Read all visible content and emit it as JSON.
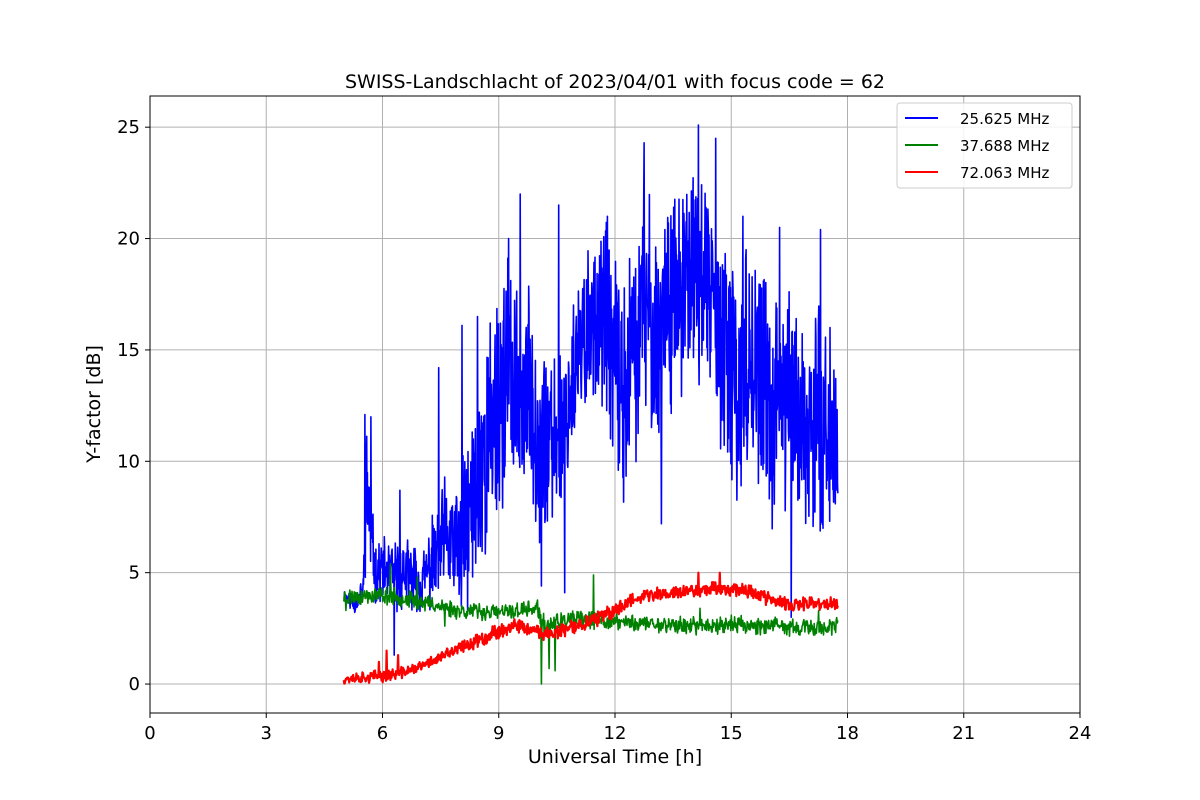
{
  "chart_data": {
    "type": "line",
    "title": "SWISS-Landschlacht of 2023/04/01 with focus code = 62",
    "xlabel": "Universal Time [h]",
    "ylabel": "Y-factor [dB]",
    "xlim": [
      0,
      24
    ],
    "ylim": [
      -1.3,
      26.4
    ],
    "xticks": [
      0,
      3,
      6,
      9,
      12,
      15,
      18,
      21,
      24
    ],
    "yticks": [
      0,
      5,
      10,
      15,
      20,
      25
    ],
    "grid": true,
    "legend_position": "top-right",
    "series": [
      {
        "name": "25.625 MHz",
        "color": "#0000ff",
        "x": [
          5.0,
          5.3,
          5.5,
          5.6,
          5.8,
          6.0,
          6.3,
          6.6,
          7.0,
          7.3,
          7.6,
          8.0,
          8.3,
          8.6,
          8.9,
          9.2,
          9.5,
          9.8,
          10.1,
          10.4,
          10.7,
          11.0,
          11.3,
          11.6,
          11.9,
          12.2,
          12.5,
          12.8,
          13.1,
          13.4,
          13.7,
          14.0,
          14.3,
          14.6,
          14.9,
          15.2,
          15.5,
          15.8,
          16.1,
          16.4,
          16.7,
          17.0,
          17.3,
          17.6,
          17.75
        ],
        "y": [
          4.0,
          3.6,
          4.2,
          9.0,
          5.0,
          5.2,
          4.8,
          5.0,
          4.5,
          5.5,
          6.5,
          6.0,
          8.0,
          10.0,
          12.0,
          14.0,
          12.5,
          13.0,
          11.0,
          10.5,
          12.0,
          14.0,
          16.0,
          17.0,
          15.0,
          13.0,
          15.0,
          17.0,
          15.0,
          18.0,
          17.0,
          19.0,
          18.0,
          17.0,
          14.0,
          13.0,
          15.0,
          13.0,
          12.0,
          13.0,
          12.0,
          11.0,
          12.0,
          11.0,
          10.5
        ],
        "amp": [
          0.2,
          0.4,
          0.5,
          2.5,
          1.0,
          1.0,
          1.2,
          1.2,
          1.0,
          1.5,
          2.0,
          2.5,
          3.5,
          4.0,
          4.0,
          4.0,
          3.5,
          3.5,
          3.5,
          3.0,
          3.0,
          3.0,
          3.0,
          3.0,
          3.5,
          3.5,
          4.0,
          4.0,
          4.0,
          4.0,
          3.5,
          3.5,
          3.5,
          3.5,
          4.0,
          4.0,
          4.0,
          4.0,
          4.0,
          4.0,
          4.0,
          4.0,
          3.5,
          3.5,
          3.0
        ],
        "spikes": [
          [
            5.55,
            12.1
          ],
          [
            5.7,
            12.0
          ],
          [
            6.45,
            8.7
          ],
          [
            6.3,
            1.3
          ],
          [
            7.45,
            14.2
          ],
          [
            8.05,
            16.1
          ],
          [
            8.45,
            16.5
          ],
          [
            9.25,
            20.0
          ],
          [
            9.55,
            22.0
          ],
          [
            10.1,
            4.4
          ],
          [
            10.55,
            21.5
          ],
          [
            10.7,
            4.1
          ],
          [
            11.8,
            21.0
          ],
          [
            12.75,
            24.3
          ],
          [
            13.2,
            7.2
          ],
          [
            14.15,
            25.1
          ],
          [
            14.6,
            24.5
          ],
          [
            15.3,
            21.0
          ],
          [
            16.25,
            20.5
          ],
          [
            16.55,
            3.0
          ],
          [
            17.3,
            20.4
          ]
        ],
        "noise_seed": 11,
        "samples": 1400
      },
      {
        "name": "37.688 MHz",
        "color": "#008000",
        "x": [
          5.0,
          6.0,
          7.0,
          8.0,
          9.0,
          9.5,
          10.0,
          10.15,
          10.5,
          11.0,
          12.0,
          13.0,
          14.0,
          15.0,
          16.0,
          17.0,
          17.75
        ],
        "y": [
          3.9,
          4.0,
          3.7,
          3.3,
          3.2,
          3.3,
          3.4,
          2.6,
          2.8,
          2.9,
          2.8,
          2.7,
          2.6,
          2.7,
          2.6,
          2.5,
          2.6
        ],
        "amp": [
          0.3,
          0.3,
          0.3,
          0.3,
          0.3,
          0.3,
          0.3,
          0.4,
          0.3,
          0.3,
          0.3,
          0.3,
          0.3,
          0.3,
          0.3,
          0.3,
          0.3
        ],
        "spikes": [
          [
            5.05,
            3.3
          ],
          [
            6.2,
            5.4
          ],
          [
            6.9,
            4.8
          ],
          [
            7.6,
            2.6
          ],
          [
            10.1,
            0.0
          ],
          [
            10.3,
            0.7
          ],
          [
            10.45,
            0.6
          ],
          [
            11.45,
            4.9
          ],
          [
            14.2,
            3.4
          ],
          [
            17.25,
            3.3
          ]
        ],
        "noise_seed": 23,
        "samples": 900
      },
      {
        "name": "72.063 MHz",
        "color": "#ff0000",
        "x": [
          5.0,
          5.5,
          6.0,
          6.5,
          7.0,
          7.5,
          8.0,
          8.5,
          9.0,
          9.5,
          10.0,
          10.5,
          11.0,
          11.5,
          12.0,
          12.5,
          13.0,
          13.5,
          14.0,
          14.5,
          15.0,
          15.5,
          16.0,
          16.5,
          17.0,
          17.5,
          17.75
        ],
        "y": [
          0.25,
          0.3,
          0.35,
          0.5,
          0.8,
          1.2,
          1.6,
          2.0,
          2.4,
          2.6,
          2.3,
          2.3,
          2.6,
          2.9,
          3.3,
          3.9,
          4.0,
          4.1,
          4.2,
          4.3,
          4.3,
          4.2,
          3.8,
          3.5,
          3.6,
          3.6,
          3.5
        ],
        "amp": [
          0.2,
          0.2,
          0.2,
          0.2,
          0.2,
          0.2,
          0.25,
          0.25,
          0.25,
          0.25,
          0.25,
          0.25,
          0.25,
          0.25,
          0.25,
          0.25,
          0.25,
          0.25,
          0.25,
          0.25,
          0.25,
          0.25,
          0.25,
          0.25,
          0.25,
          0.25,
          0.25
        ],
        "spikes": [
          [
            5.9,
            1.0
          ],
          [
            6.1,
            1.5
          ],
          [
            6.4,
            1.3
          ],
          [
            14.15,
            5.0
          ],
          [
            14.7,
            5.0
          ]
        ],
        "noise_seed": 37,
        "samples": 900
      }
    ]
  }
}
